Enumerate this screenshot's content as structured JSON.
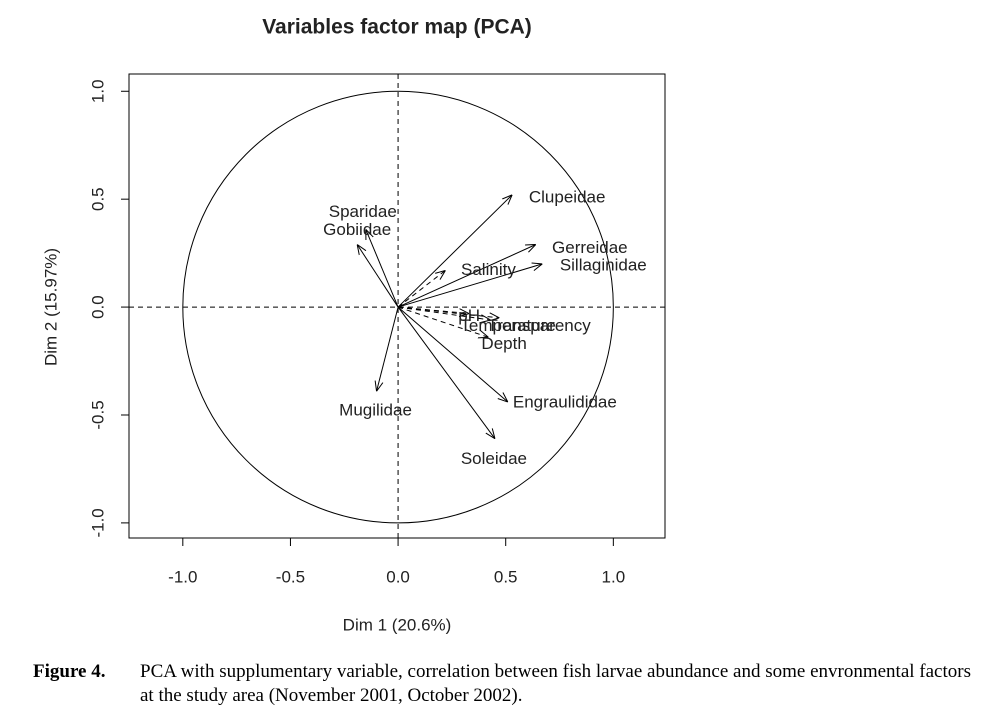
{
  "chart_data": {
    "type": "pca-variables",
    "title": "Variables factor map (PCA)",
    "xlabel": "Dim 1 (20.6%)",
    "ylabel": "Dim 2 (15.97%)",
    "xlim": [
      -1.25,
      1.24
    ],
    "ylim": [
      -1.07,
      1.08
    ],
    "xticks": [
      {
        "value": -1,
        "label": "-1.0"
      },
      -0.5,
      {
        "value": 0,
        "label": "0.0"
      },
      0.5,
      {
        "value": 1,
        "label": "1.0"
      }
    ],
    "yticks": [
      {
        "value": -1,
        "label": "-1.0"
      },
      -0.5,
      {
        "value": 0,
        "label": "0.0"
      },
      0.5,
      {
        "value": 1,
        "label": "1.0"
      }
    ],
    "color": "#000000",
    "variables": [
      {
        "label": "Clupeidae",
        "x": 0.53,
        "y": 0.52
      },
      {
        "label": "Gerreidae",
        "x": 0.64,
        "y": 0.29
      },
      {
        "label": "Sillaginidae",
        "x": 0.67,
        "y": 0.2
      },
      {
        "label": "Sparidae",
        "x": -0.15,
        "y": 0.36
      },
      {
        "label": "Gobiidae",
        "x": -0.19,
        "y": 0.29
      },
      {
        "label": "Mugilidae",
        "x": -0.1,
        "y": -0.39
      },
      {
        "label": "Engraulididae",
        "x": 0.51,
        "y": -0.44
      },
      {
        "label": "Soleidae",
        "x": 0.45,
        "y": -0.61
      }
    ],
    "supplementary": [
      {
        "label": "Salinity",
        "x": 0.22,
        "y": 0.17
      },
      {
        "label": "pH",
        "x": 0.33,
        "y": -0.03
      },
      {
        "label": "Temperature",
        "x": 0.43,
        "y": -0.06
      },
      {
        "label": "Transparency",
        "x": 0.47,
        "y": -0.05
      },
      {
        "label": "Depth",
        "x": 0.42,
        "y": -0.14
      }
    ]
  },
  "caption": {
    "label": "Figure 4.",
    "text": "PCA with supplumentary variable, correlation between fish larvae abundance and some envronmental factors at the study area (November 2001, October 2002)."
  }
}
